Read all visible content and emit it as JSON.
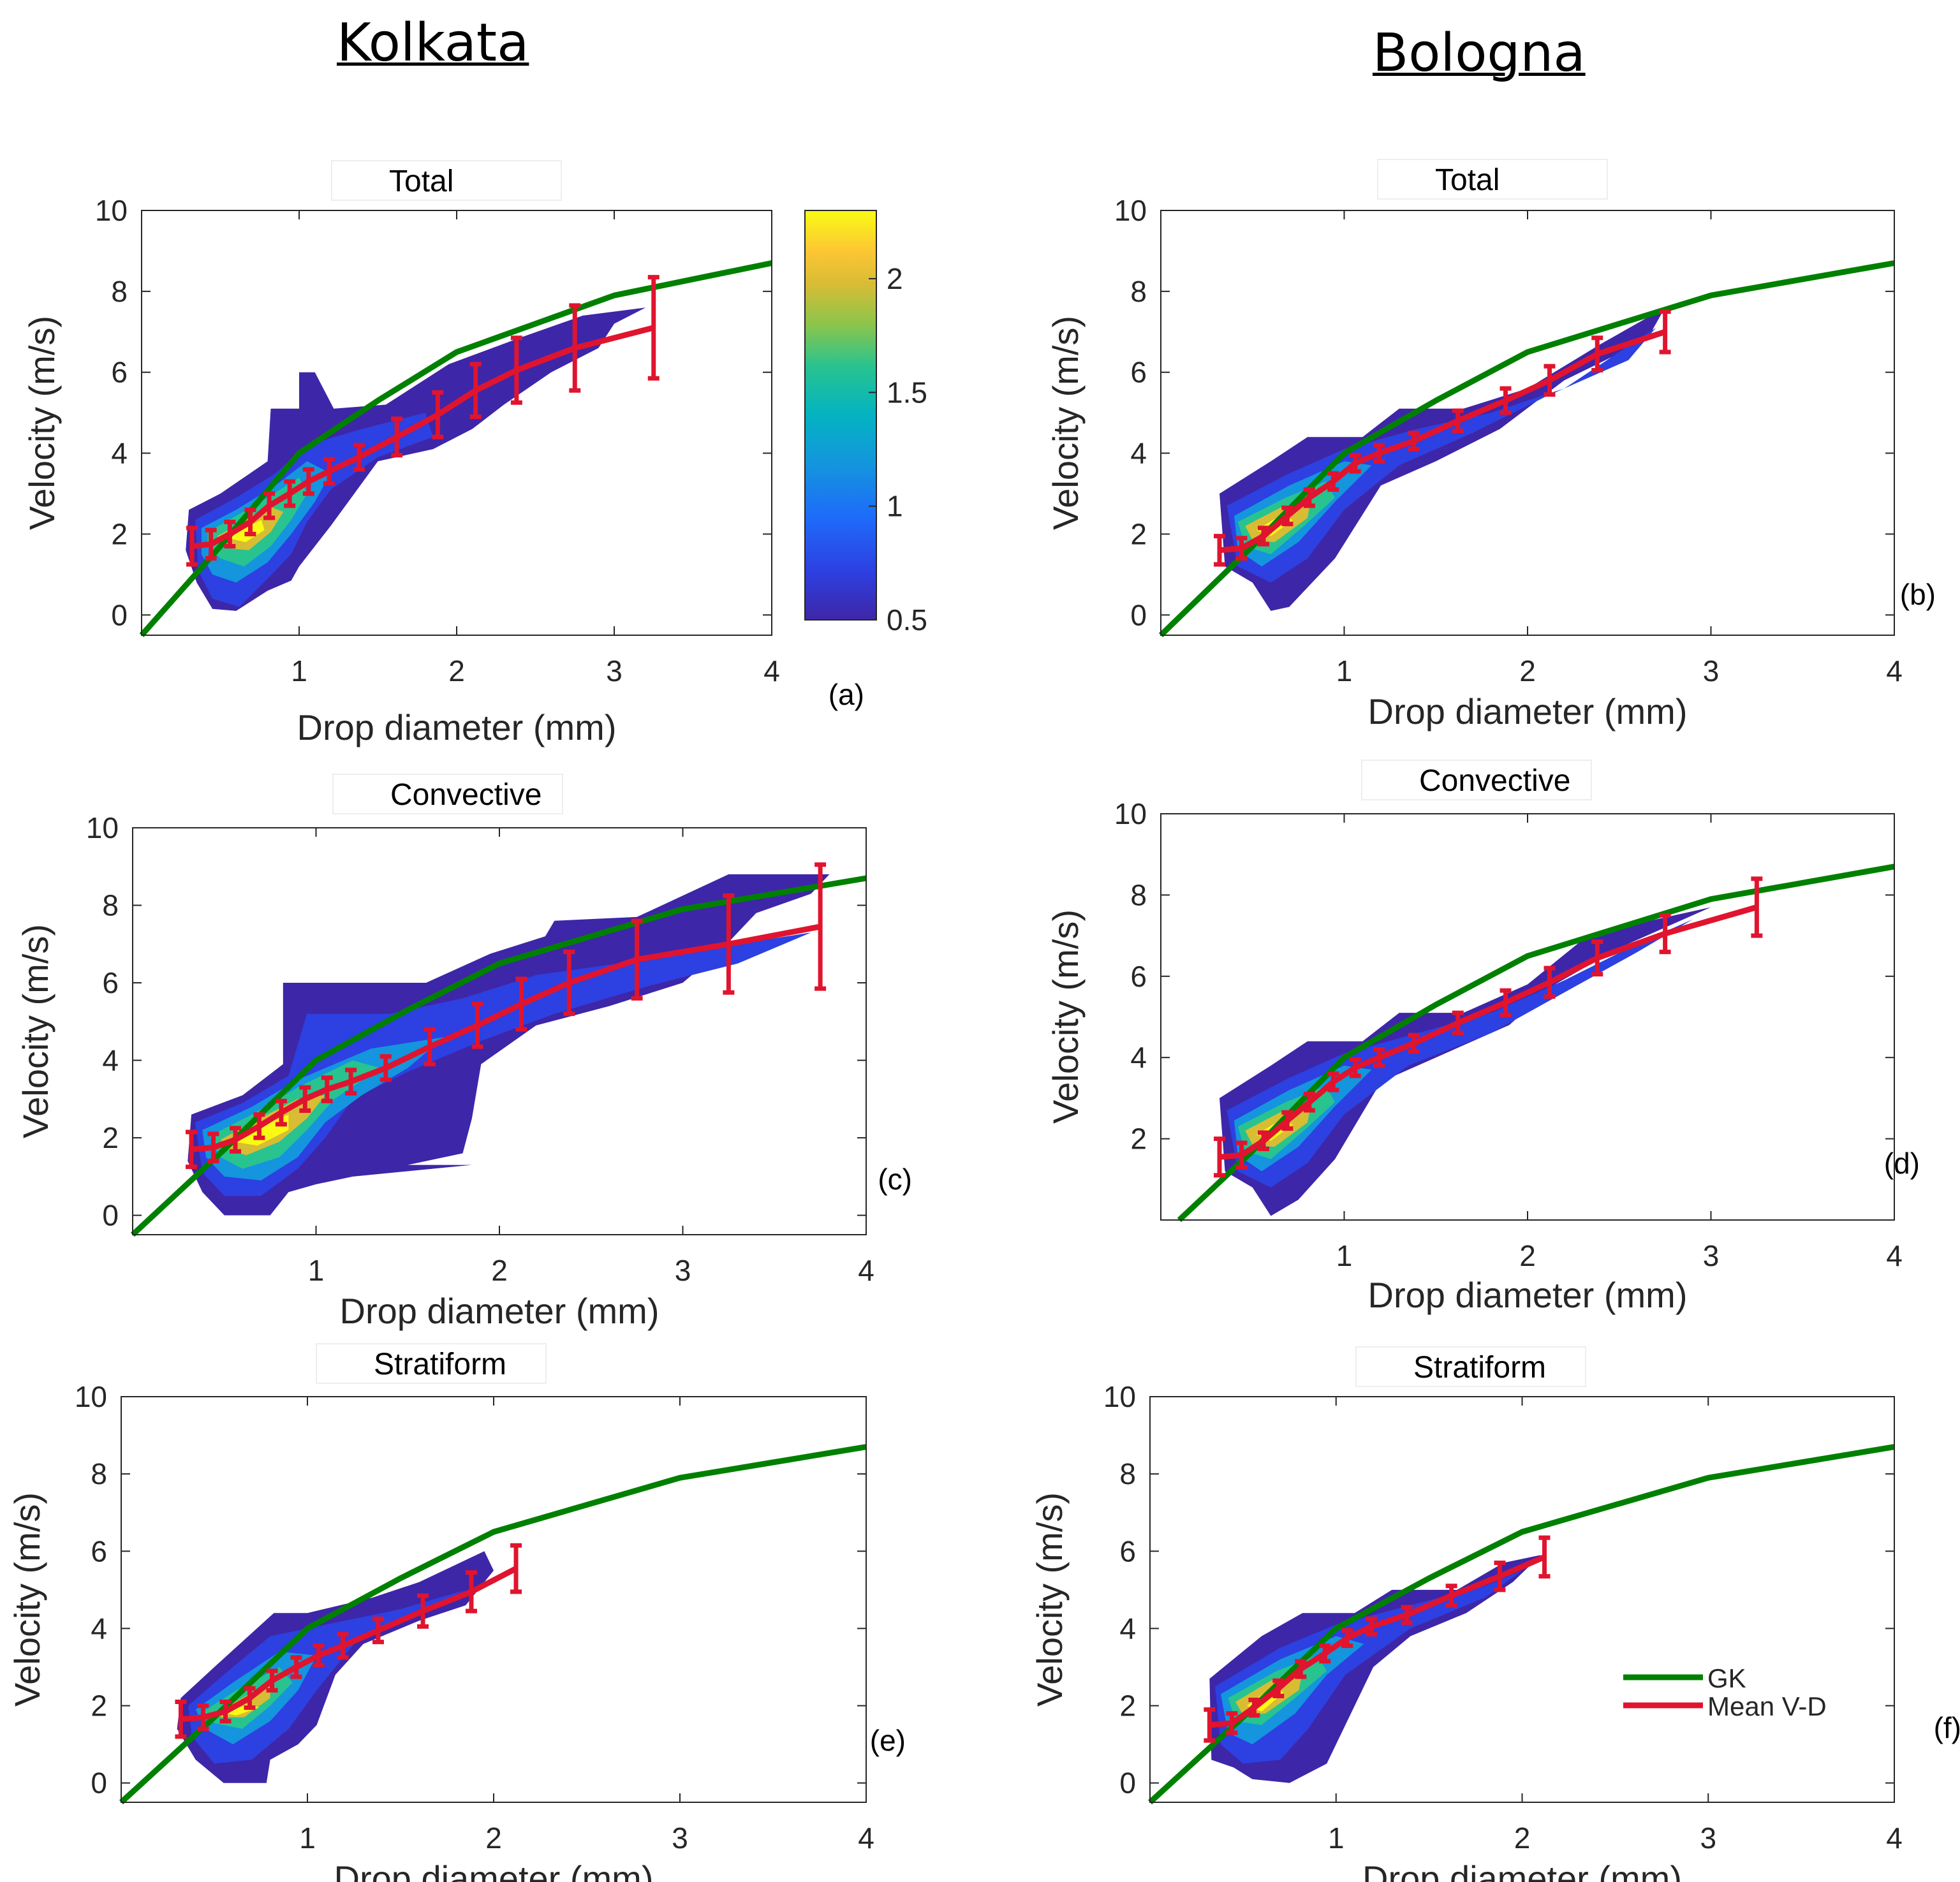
{
  "page": {
    "column_titles": [
      "Kolkata",
      "Bologna"
    ]
  },
  "colors": {
    "gk": "#008000",
    "mean": "#e0142e",
    "axes": "#000000",
    "colormap": [
      "#3e26a8",
      "#2d40e1",
      "#1e6bfa",
      "#1495dd",
      "#03b3c2",
      "#29c38f",
      "#8ac54c",
      "#d8bc34",
      "#fcc634",
      "#f9fb14"
    ]
  },
  "chart_data": [
    {
      "id": "a",
      "type": "line",
      "title": "Total",
      "panel_label": "(a)",
      "xlabel": "Drop diameter (mm)",
      "ylabel": "Velocity (m/s)",
      "xlim": [
        0,
        4
      ],
      "ylim": [
        -0.5,
        10
      ],
      "xticks": [
        "1",
        "2",
        "3",
        "4"
      ],
      "yticks": [
        "0",
        "2",
        "4",
        "6",
        "8",
        "10"
      ],
      "series": [
        {
          "name": "GK",
          "x": [
            0,
            0.5,
            1,
            1.5,
            2,
            2.5,
            3,
            3.5,
            4
          ],
          "y": [
            -0.5,
            1.7,
            4.0,
            5.3,
            6.5,
            7.2,
            7.9,
            8.3,
            8.7
          ]
        },
        {
          "name": "Mean V-D",
          "x": [
            0.32,
            0.44,
            0.56,
            0.69,
            0.81,
            0.94,
            1.06,
            1.19,
            1.38,
            1.62,
            1.88,
            2.12,
            2.38,
            2.75,
            3.25
          ],
          "y": [
            1.7,
            1.75,
            2.0,
            2.3,
            2.7,
            3.0,
            3.3,
            3.55,
            3.9,
            4.4,
            4.95,
            5.55,
            6.05,
            6.6,
            7.1
          ],
          "err": [
            0.45,
            0.35,
            0.3,
            0.3,
            0.3,
            0.3,
            0.3,
            0.3,
            0.3,
            0.45,
            0.55,
            0.65,
            0.8,
            1.05,
            1.25
          ]
        }
      ],
      "colorbar": {
        "ticks": [
          "0.5",
          "1",
          "1.5",
          "2"
        ],
        "range": [
          0.5,
          2.3
        ]
      }
    },
    {
      "id": "b",
      "type": "line",
      "title": "Total",
      "panel_label": "(b)",
      "xlabel": "Drop diameter (mm)",
      "ylabel": "Velocity (m/s)",
      "xlim": [
        0,
        4
      ],
      "ylim": [
        -0.5,
        10
      ],
      "xticks": [
        "1",
        "2",
        "3",
        "4"
      ],
      "yticks": [
        "0",
        "2",
        "4",
        "6",
        "8",
        "10"
      ],
      "series": [
        {
          "name": "GK",
          "x": [
            0,
            0.5,
            1,
            1.5,
            2,
            2.5,
            3,
            3.5,
            4
          ],
          "y": [
            -0.5,
            1.7,
            4.0,
            5.3,
            6.5,
            7.2,
            7.9,
            8.3,
            8.7
          ]
        },
        {
          "name": "Mean V-D",
          "x": [
            0.32,
            0.44,
            0.56,
            0.69,
            0.81,
            0.94,
            1.06,
            1.19,
            1.38,
            1.62,
            1.88,
            2.12,
            2.38,
            2.75
          ],
          "y": [
            1.6,
            1.65,
            1.95,
            2.45,
            2.9,
            3.3,
            3.75,
            4.0,
            4.3,
            4.8,
            5.3,
            5.8,
            6.45,
            7.0
          ],
          "err": [
            0.35,
            0.25,
            0.2,
            0.2,
            0.2,
            0.2,
            0.2,
            0.2,
            0.2,
            0.25,
            0.3,
            0.35,
            0.4,
            0.5
          ]
        }
      ]
    },
    {
      "id": "c",
      "type": "line",
      "title": "Convective",
      "panel_label": "(c)",
      "xlabel": "Drop diameter (mm)",
      "ylabel": "Velocity (m/s)",
      "xlim": [
        0,
        4
      ],
      "ylim": [
        -0.5,
        10
      ],
      "xticks": [
        "1",
        "2",
        "3",
        "4"
      ],
      "yticks": [
        "0",
        "2",
        "4",
        "6",
        "8",
        "10"
      ],
      "series": [
        {
          "name": "GK",
          "x": [
            0,
            0.5,
            1,
            1.5,
            2,
            2.5,
            3,
            3.5,
            4
          ],
          "y": [
            -0.5,
            1.7,
            4.0,
            5.3,
            6.5,
            7.2,
            7.9,
            8.3,
            8.7
          ]
        },
        {
          "name": "Mean V-D",
          "x": [
            0.32,
            0.44,
            0.56,
            0.69,
            0.81,
            0.94,
            1.06,
            1.19,
            1.38,
            1.62,
            1.88,
            2.12,
            2.38,
            2.75,
            3.25,
            3.75
          ],
          "y": [
            1.7,
            1.75,
            1.95,
            2.3,
            2.65,
            3.0,
            3.25,
            3.45,
            3.8,
            4.35,
            4.9,
            5.45,
            6.0,
            6.6,
            7.0,
            7.45
          ],
          "err": [
            0.45,
            0.35,
            0.3,
            0.3,
            0.3,
            0.3,
            0.3,
            0.3,
            0.3,
            0.45,
            0.55,
            0.65,
            0.8,
            1.0,
            1.25,
            1.6
          ]
        }
      ]
    },
    {
      "id": "d",
      "type": "line",
      "title": "Convective",
      "panel_label": "(d)",
      "xlabel": "Drop diameter (mm)",
      "ylabel": "Velocity (m/s)",
      "xlim": [
        0,
        4
      ],
      "ylim": [
        0,
        10
      ],
      "xticks": [
        "1",
        "2",
        "3",
        "4"
      ],
      "yticks": [
        "2",
        "4",
        "6",
        "8",
        "10"
      ],
      "series": [
        {
          "name": "GK",
          "x": [
            0.1,
            0.5,
            1,
            1.5,
            2,
            2.5,
            3,
            3.5,
            4
          ],
          "y": [
            0,
            1.7,
            4.0,
            5.3,
            6.5,
            7.2,
            7.9,
            8.3,
            8.7
          ]
        },
        {
          "name": "Mean V-D",
          "x": [
            0.32,
            0.44,
            0.56,
            0.69,
            0.81,
            0.94,
            1.06,
            1.19,
            1.38,
            1.62,
            1.88,
            2.12,
            2.38,
            2.75,
            3.25
          ],
          "y": [
            1.55,
            1.6,
            1.95,
            2.45,
            2.9,
            3.4,
            3.75,
            4.0,
            4.35,
            4.85,
            5.35,
            5.85,
            6.45,
            7.05,
            7.7
          ],
          "err": [
            0.45,
            0.3,
            0.2,
            0.2,
            0.2,
            0.2,
            0.2,
            0.2,
            0.2,
            0.25,
            0.3,
            0.35,
            0.4,
            0.45,
            0.7
          ]
        }
      ]
    },
    {
      "id": "e",
      "type": "line",
      "title": "Stratiform",
      "panel_label": "(e)",
      "xlabel": "Drop diameter (mm)",
      "ylabel": "Velocity (m/s)",
      "xlim": [
        0,
        4
      ],
      "ylim": [
        -0.5,
        10
      ],
      "xticks": [
        "1",
        "2",
        "3",
        "4"
      ],
      "yticks": [
        "0",
        "2",
        "4",
        "6",
        "8",
        "10"
      ],
      "series": [
        {
          "name": "GK",
          "x": [
            0,
            0.5,
            1,
            1.5,
            2,
            2.5,
            3,
            3.5,
            4
          ],
          "y": [
            -0.5,
            1.7,
            4.0,
            5.3,
            6.5,
            7.2,
            7.9,
            8.3,
            8.7
          ]
        },
        {
          "name": "Mean V-D",
          "x": [
            0.32,
            0.44,
            0.56,
            0.69,
            0.81,
            0.94,
            1.06,
            1.19,
            1.38,
            1.62,
            1.88,
            2.12
          ],
          "y": [
            1.65,
            1.7,
            1.85,
            2.2,
            2.65,
            3.0,
            3.3,
            3.55,
            3.95,
            4.45,
            4.95,
            5.55
          ],
          "err": [
            0.45,
            0.3,
            0.25,
            0.25,
            0.25,
            0.25,
            0.25,
            0.3,
            0.3,
            0.4,
            0.5,
            0.6
          ]
        }
      ]
    },
    {
      "id": "f",
      "type": "line",
      "title": "Stratiform",
      "panel_label": "(f)",
      "xlabel": "Drop diameter (mm)",
      "ylabel": "Velocity (m/s)",
      "xlim": [
        0,
        4
      ],
      "ylim": [
        -0.5,
        10
      ],
      "xticks": [
        "1",
        "2",
        "3",
        "4"
      ],
      "yticks": [
        "0",
        "2",
        "4",
        "6",
        "8",
        "10"
      ],
      "series": [
        {
          "name": "GK",
          "x": [
            0,
            0.5,
            1,
            1.5,
            2,
            2.5,
            3,
            3.5,
            4
          ],
          "y": [
            -0.5,
            1.7,
            4.0,
            5.3,
            6.5,
            7.2,
            7.9,
            8.3,
            8.7
          ]
        },
        {
          "name": "Mean V-D",
          "x": [
            0.32,
            0.44,
            0.56,
            0.69,
            0.81,
            0.94,
            1.06,
            1.19,
            1.38,
            1.62,
            1.88,
            2.12
          ],
          "y": [
            1.5,
            1.55,
            1.95,
            2.45,
            2.95,
            3.35,
            3.75,
            4.05,
            4.35,
            4.85,
            5.35,
            5.85
          ],
          "err": [
            0.4,
            0.25,
            0.2,
            0.2,
            0.2,
            0.2,
            0.2,
            0.2,
            0.2,
            0.25,
            0.35,
            0.5
          ]
        }
      ],
      "legend": {
        "entries": [
          "GK",
          "Mean V-D"
        ],
        "position": "bottom-right"
      }
    }
  ]
}
